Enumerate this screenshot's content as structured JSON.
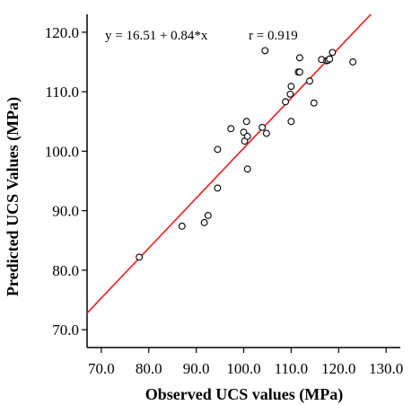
{
  "chart_data": {
    "type": "scatter",
    "xlabel": "Observed UCS values (MPa)",
    "ylabel": "Predicted UCS Values (MPa)",
    "xlim": [
      67,
      133
    ],
    "ylim": [
      67,
      123
    ],
    "x_ticks": [
      "70.0",
      "80.0",
      "90.0",
      "100.0",
      "110.0",
      "120.0",
      "130.0"
    ],
    "y_ticks": [
      "70.0",
      "80.0",
      "90.0",
      "100.0",
      "110.0",
      "120.0"
    ],
    "x_tick_values": [
      70,
      80,
      90,
      100,
      110,
      120,
      130
    ],
    "y_tick_values": [
      70,
      80,
      90,
      100,
      110,
      120
    ],
    "grid": false,
    "legend": "none",
    "annotations": {
      "equation": "y = 16.51 + 0.84*x",
      "correlation": "r = 0.919"
    },
    "fit_line": {
      "intercept": 16.51,
      "slope": 0.84,
      "color": "#e8292b"
    },
    "marker": {
      "shape": "open-circle",
      "color": "#000000"
    },
    "points": [
      {
        "x": 78.0,
        "y": 82.2
      },
      {
        "x": 87.0,
        "y": 87.4
      },
      {
        "x": 91.7,
        "y": 88.0
      },
      {
        "x": 92.5,
        "y": 89.2
      },
      {
        "x": 94.5,
        "y": 93.8
      },
      {
        "x": 94.5,
        "y": 100.3
      },
      {
        "x": 97.3,
        "y": 103.8
      },
      {
        "x": 100.0,
        "y": 103.2
      },
      {
        "x": 100.2,
        "y": 101.7
      },
      {
        "x": 100.6,
        "y": 105.0
      },
      {
        "x": 100.8,
        "y": 102.5
      },
      {
        "x": 100.8,
        "y": 97.0
      },
      {
        "x": 103.9,
        "y": 104.0
      },
      {
        "x": 104.8,
        "y": 103.0
      },
      {
        "x": 104.5,
        "y": 116.9
      },
      {
        "x": 108.8,
        "y": 108.3
      },
      {
        "x": 109.8,
        "y": 109.6
      },
      {
        "x": 110.0,
        "y": 110.9
      },
      {
        "x": 110.0,
        "y": 105.0
      },
      {
        "x": 111.5,
        "y": 113.3
      },
      {
        "x": 111.8,
        "y": 115.7
      },
      {
        "x": 111.8,
        "y": 113.3
      },
      {
        "x": 113.9,
        "y": 111.8
      },
      {
        "x": 114.8,
        "y": 108.1
      },
      {
        "x": 116.4,
        "y": 115.4
      },
      {
        "x": 117.5,
        "y": 115.2
      },
      {
        "x": 117.8,
        "y": 115.3
      },
      {
        "x": 118.1,
        "y": 115.5
      },
      {
        "x": 118.7,
        "y": 116.6
      },
      {
        "x": 123.0,
        "y": 115.0
      }
    ]
  }
}
